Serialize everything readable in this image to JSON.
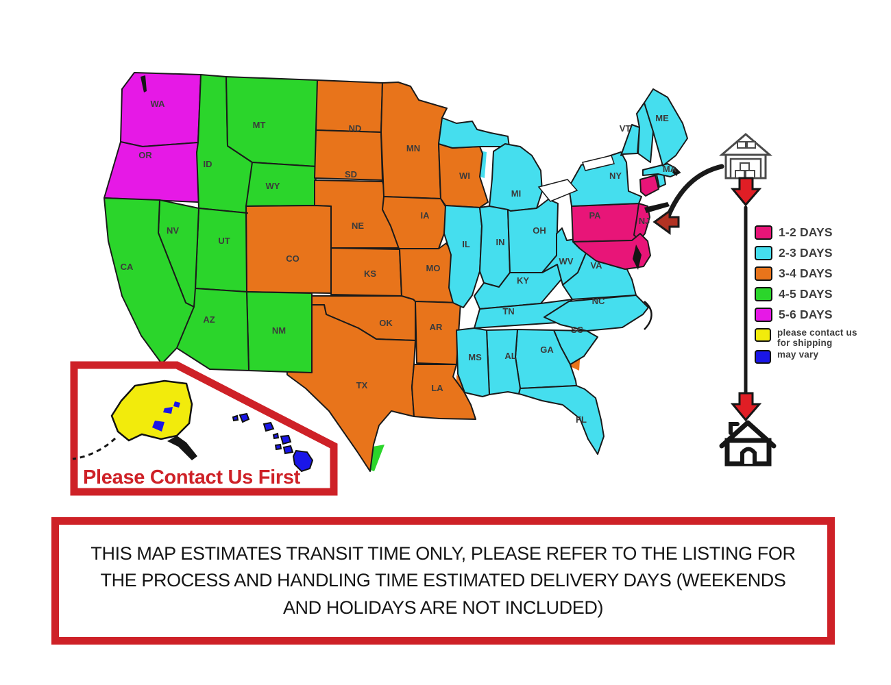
{
  "page": {
    "background": "#ffffff"
  },
  "map": {
    "zones": {
      "1-2": {
        "label": "1-2 DAYS",
        "color": "#E81578"
      },
      "2-3": {
        "label": "2-3 DAYS",
        "color": "#45DEEE"
      },
      "3-4": {
        "label": "3-4 DAYS",
        "color": "#E8741B"
      },
      "4-5": {
        "label": "4-5 DAYS",
        "color": "#2BD52B"
      },
      "5-6": {
        "label": "5-6 DAYS",
        "color": "#E619E6"
      },
      "contact": {
        "label": "please contact us for shipping",
        "color": "#F2EB0C"
      },
      "vary": {
        "label": "may vary",
        "color": "#1A16E8"
      }
    },
    "states": [
      {
        "abbr": "WA",
        "zone": "5-6",
        "label": [
          230,
          152
        ]
      },
      {
        "abbr": "OR",
        "zone": "5-6",
        "label": [
          212,
          227
        ]
      },
      {
        "abbr": "CA",
        "zone": "4-5",
        "partial": "5-6",
        "label": [
          185,
          390
        ]
      },
      {
        "abbr": "NV",
        "zone": "4-5",
        "partial": "5-6",
        "label": [
          252,
          337
        ]
      },
      {
        "abbr": "ID",
        "zone": "4-5",
        "partial": "5-6",
        "label": [
          303,
          240
        ]
      },
      {
        "abbr": "MT",
        "zone": "4-5",
        "label": [
          378,
          183
        ]
      },
      {
        "abbr": "WY",
        "zone": "4-5",
        "label": [
          398,
          272
        ]
      },
      {
        "abbr": "UT",
        "zone": "4-5",
        "label": [
          327,
          352
        ]
      },
      {
        "abbr": "AZ",
        "zone": "4-5",
        "label": [
          305,
          467
        ]
      },
      {
        "abbr": "NM",
        "zone": "4-5",
        "partial": "3-4",
        "label": [
          407,
          483
        ]
      },
      {
        "abbr": "CO",
        "zone": "3-4",
        "partial": "4-5",
        "label": [
          427,
          378
        ]
      },
      {
        "abbr": "ND",
        "zone": "3-4",
        "partial": "4-5",
        "label": [
          518,
          188
        ]
      },
      {
        "abbr": "SD",
        "zone": "3-4",
        "partial": "4-5",
        "label": [
          512,
          255
        ]
      },
      {
        "abbr": "NE",
        "zone": "3-4",
        "partial": "4-5",
        "label": [
          522,
          330
        ]
      },
      {
        "abbr": "KS",
        "zone": "3-4",
        "label": [
          540,
          400
        ]
      },
      {
        "abbr": "OK",
        "zone": "3-4",
        "label": [
          563,
          472
        ]
      },
      {
        "abbr": "TX",
        "zone": "3-4",
        "partial": "4-5",
        "label": [
          528,
          563
        ]
      },
      {
        "abbr": "MN",
        "zone": "3-4",
        "label": [
          603,
          217
        ]
      },
      {
        "abbr": "IA",
        "zone": "3-4",
        "label": [
          620,
          315
        ]
      },
      {
        "abbr": "MO",
        "zone": "3-4",
        "partial": "2-3",
        "label": [
          632,
          392
        ]
      },
      {
        "abbr": "AR",
        "zone": "3-4",
        "partial": "2-3",
        "label": [
          636,
          478
        ]
      },
      {
        "abbr": "LA",
        "zone": "3-4",
        "label": [
          638,
          567
        ]
      },
      {
        "abbr": "WI",
        "zone": "3-4",
        "partial": "2-3",
        "label": [
          678,
          257
        ]
      },
      {
        "abbr": "IL",
        "zone": "2-3",
        "label": [
          680,
          357
        ]
      },
      {
        "abbr": "IN",
        "zone": "2-3",
        "label": [
          730,
          354
        ]
      },
      {
        "abbr": "MI",
        "zone": "2-3",
        "partial": "3-4",
        "label": [
          753,
          283
        ]
      },
      {
        "abbr": "OH",
        "zone": "2-3",
        "label": [
          787,
          337
        ]
      },
      {
        "abbr": "KY",
        "zone": "2-3",
        "label": [
          763,
          410
        ]
      },
      {
        "abbr": "TN",
        "zone": "2-3",
        "label": [
          742,
          455
        ]
      },
      {
        "abbr": "MS",
        "zone": "2-3",
        "partial": "3-4",
        "label": [
          693,
          522
        ]
      },
      {
        "abbr": "AL",
        "zone": "2-3",
        "label": [
          745,
          520
        ]
      },
      {
        "abbr": "GA",
        "zone": "2-3",
        "partial": "3-4",
        "label": [
          798,
          511
        ]
      },
      {
        "abbr": "FL",
        "zone": "2-3",
        "label": [
          848,
          613
        ]
      },
      {
        "abbr": "SC",
        "zone": "2-3",
        "label": [
          842,
          482
        ]
      },
      {
        "abbr": "NC",
        "zone": "2-3",
        "label": [
          873,
          440
        ]
      },
      {
        "abbr": "VA",
        "zone": "2-3",
        "partial": "1-2",
        "label": [
          870,
          388
        ]
      },
      {
        "abbr": "WV",
        "zone": "2-3",
        "label": [
          826,
          382
        ]
      },
      {
        "abbr": "PA",
        "zone": "1-2",
        "partial": "2-3",
        "label": [
          868,
          315
        ]
      },
      {
        "abbr": "NY",
        "zone": "2-3",
        "partial": "1-2",
        "label": [
          898,
          257
        ]
      },
      {
        "abbr": "NJ",
        "zone": "1-2",
        "label": [
          940,
          323
        ]
      },
      {
        "abbr": "MD",
        "zone": "1-2",
        "label": null
      },
      {
        "abbr": "CT",
        "zone": "1-2",
        "label": null
      },
      {
        "abbr": "RI",
        "zone": "2-3",
        "label": null
      },
      {
        "abbr": "VT",
        "zone": "2-3",
        "label": [
          912,
          188
        ]
      },
      {
        "abbr": "NH",
        "zone": "2-3",
        "label": null
      },
      {
        "abbr": "MA",
        "zone": "2-3",
        "label": [
          977,
          247
        ]
      },
      {
        "abbr": "ME",
        "zone": "2-3",
        "label": [
          966,
          173
        ]
      },
      {
        "abbr": "AK",
        "zone": "contact",
        "label": [
          215,
          601
        ]
      },
      {
        "abbr": "HI",
        "zone": "vary",
        "label": [
          375,
          659
        ]
      }
    ]
  },
  "legend": {
    "items": [
      {
        "zone": "1-2"
      },
      {
        "zone": "2-3"
      },
      {
        "zone": "3-4"
      },
      {
        "zone": "4-5"
      },
      {
        "zone": "5-6"
      },
      {
        "zone": "contact",
        "small": true
      },
      {
        "zone": "vary",
        "small": true
      }
    ]
  },
  "inset": {
    "title": "Please Contact Us First"
  },
  "route": {
    "origin_icon": "warehouse-icon",
    "destination_icon": "house-icon"
  },
  "disclaimer": {
    "lines": [
      "THIS MAP ESTIMATES TRANSIT TIME ONLY, PLEASE REFER TO THE LISTING FOR",
      "THE PROCESS AND HANDLING TIME ESTIMATED DELIVERY DAYS (WEEKENDS",
      "AND HOLIDAYS ARE NOT INCLUDED)"
    ]
  },
  "accent": {
    "red": "#CE2127",
    "arrow_red": "#E01E25",
    "dark": "#1a1a1a"
  }
}
